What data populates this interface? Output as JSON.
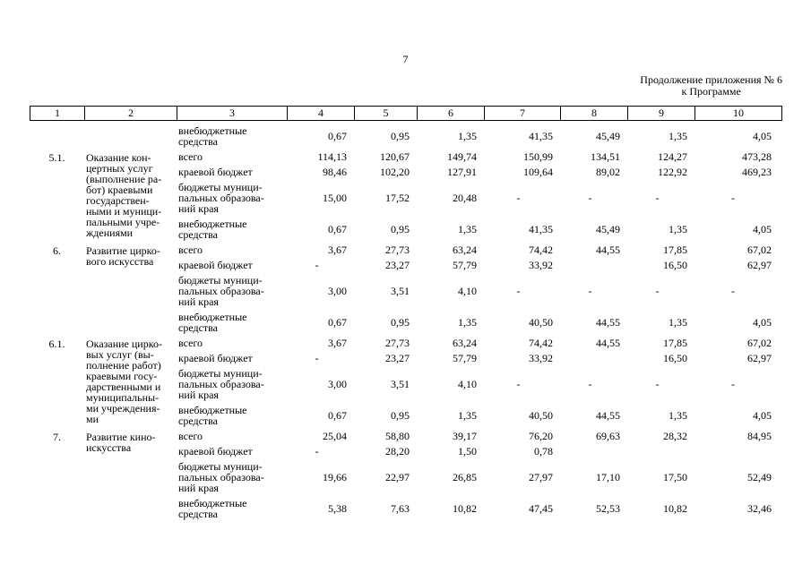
{
  "page": {
    "number": "7",
    "continuation": [
      "Продолжение приложения № 6",
      "к Программе"
    ]
  },
  "table": {
    "header": [
      "1",
      "2",
      "3",
      "4",
      "5",
      "6",
      "7",
      "8",
      "9",
      "10"
    ],
    "groups": [
      {
        "num": "",
        "name": [],
        "lines": [
          {
            "type": [
              "внебюджетные",
              "средства"
            ],
            "values": [
              "0,67",
              "0,95",
              "1,35",
              "41,35",
              "45,49",
              "1,35",
              "4,05"
            ]
          }
        ]
      },
      {
        "num": "5.1.",
        "name": [
          "Оказание кон-",
          "цертных услуг",
          "(выполнение ра-",
          "бот) краевыми",
          "государствен-",
          "ными и муници-",
          "пальными учре-",
          "ждениями"
        ],
        "lines": [
          {
            "type": "всего",
            "values": [
              "114,13",
              "120,67",
              "149,74",
              "150,99",
              "134,51",
              "124,27",
              "473,28"
            ]
          },
          {
            "type": "краевой бюджет",
            "values": [
              "98,46",
              "102,20",
              "127,91",
              "109,64",
              "89,02",
              "122,92",
              "469,23"
            ]
          },
          {
            "type": [
              "бюджеты муници-",
              "пальных образова-",
              "ний края"
            ],
            "values": [
              "15,00",
              "17,52",
              "20,48",
              "-",
              "-",
              "-",
              "-"
            ]
          },
          {
            "type": [
              "внебюджетные",
              "средства"
            ],
            "values": [
              "0,67",
              "0,95",
              "1,35",
              "41,35",
              "45,49",
              "1,35",
              "4,05"
            ]
          }
        ]
      },
      {
        "num": "6.",
        "name": [
          "Развитие цирко-",
          "вого искусства"
        ],
        "lines": [
          {
            "type": "всего",
            "values": [
              "3,67",
              "27,73",
              "63,24",
              "74,42",
              "44,55",
              "17,85",
              "67,02"
            ]
          },
          {
            "type": "краевой бюджет",
            "values": [
              "-",
              "23,27",
              "57,79",
              "33,92",
              "",
              "16,50",
              "62,97"
            ]
          },
          {
            "type": [
              "бюджеты муници-",
              "пальных образова-",
              "ний края"
            ],
            "values": [
              "3,00",
              "3,51",
              "4,10",
              "-",
              "-",
              "-",
              "-"
            ]
          },
          {
            "type": [
              "внебюджетные",
              "средства"
            ],
            "values": [
              "0,67",
              "0,95",
              "1,35",
              "40,50",
              "44,55",
              "1,35",
              "4,05"
            ]
          }
        ]
      },
      {
        "num": "6.1.",
        "name": [
          "Оказание цирко-",
          "вых услуг (вы-",
          "полнение работ)",
          "краевыми госу-",
          "дарственными и",
          "муниципальны-",
          "ми учреждения-",
          "ми"
        ],
        "lines": [
          {
            "type": "всего",
            "values": [
              "3,67",
              "27,73",
              "63,24",
              "74,42",
              "44,55",
              "17,85",
              "67,02"
            ]
          },
          {
            "type": "краевой бюджет",
            "values": [
              "-",
              "23,27",
              "57,79",
              "33,92",
              "",
              "16,50",
              "62,97"
            ]
          },
          {
            "type": [
              "бюджеты муници-",
              "пальных образова-",
              "ний края"
            ],
            "values": [
              "3,00",
              "3,51",
              "4,10",
              "-",
              "-",
              "-",
              "-"
            ]
          },
          {
            "type": [
              "внебюджетные",
              "средства"
            ],
            "values": [
              "0,67",
              "0,95",
              "1,35",
              "40,50",
              "44,55",
              "1,35",
              "4,05"
            ]
          }
        ]
      },
      {
        "num": "7.",
        "name": [
          "Развитие кино-",
          "искусства"
        ],
        "lines": [
          {
            "type": "всего",
            "values": [
              "25,04",
              "58,80",
              "39,17",
              "76,20",
              "69,63",
              "28,32",
              "84,95"
            ]
          },
          {
            "type": "краевой бюджет",
            "values": [
              "-",
              "28,20",
              "1,50",
              "0,78",
              "",
              "",
              ""
            ]
          },
          {
            "type": [
              "бюджеты муници-",
              "пальных образова-",
              "ний края"
            ],
            "values": [
              "19,66",
              "22,97",
              "26,85",
              "27,97",
              "17,10",
              "17,50",
              "52,49"
            ]
          },
          {
            "type": [
              "внебюджетные",
              "средства"
            ],
            "values": [
              "5,38",
              "7,63",
              "10,82",
              "47,45",
              "52,53",
              "10,82",
              "32,46"
            ]
          }
        ]
      }
    ]
  }
}
